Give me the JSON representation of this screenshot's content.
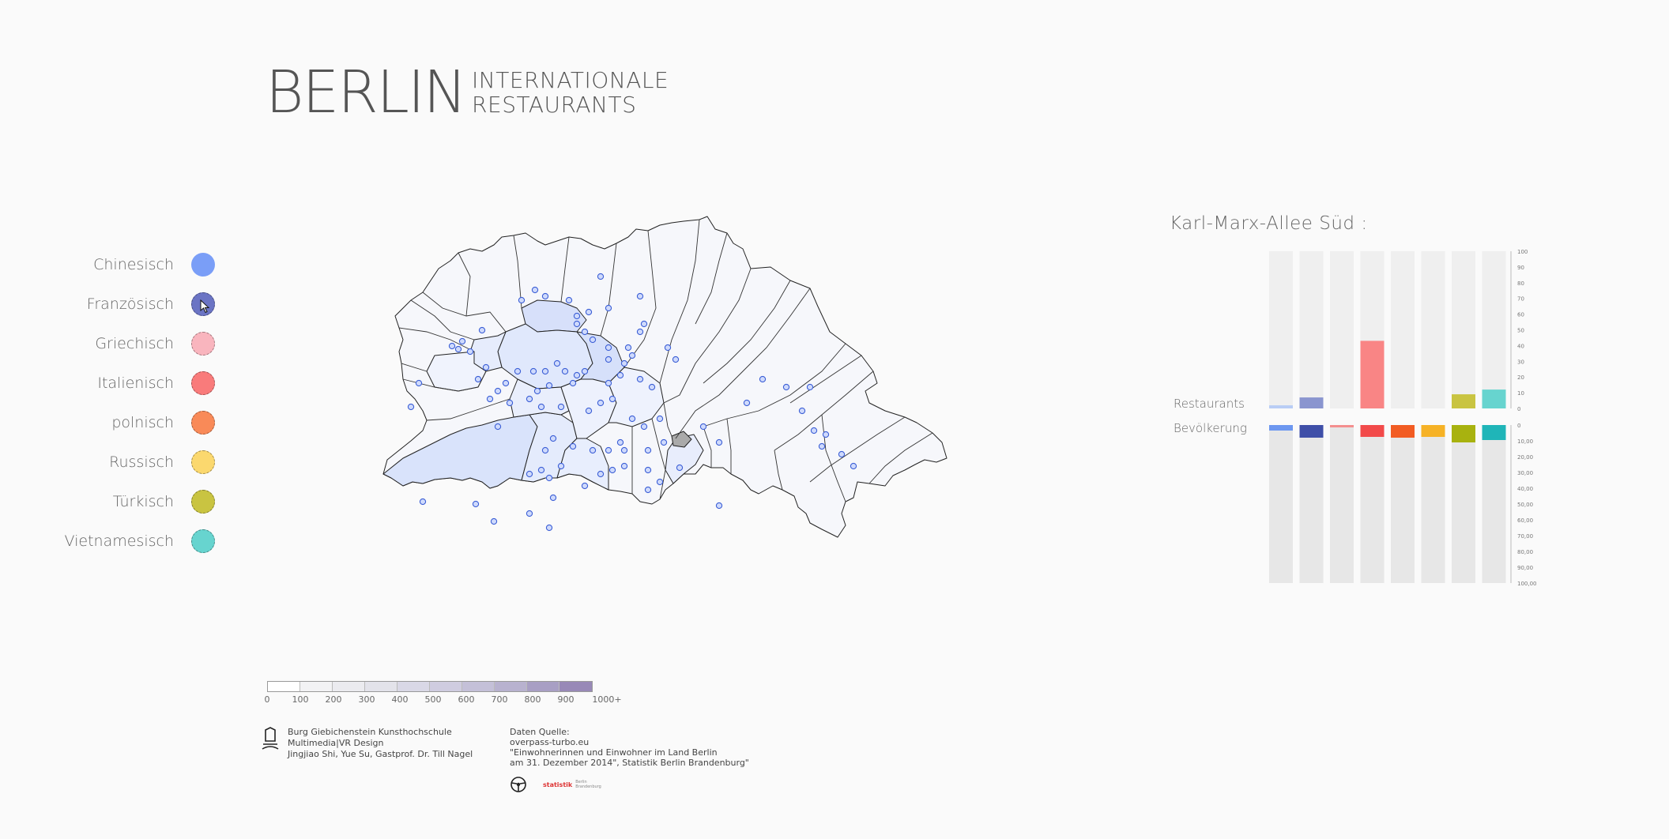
{
  "header": {
    "title": "BERLIN",
    "subtitle_line1": "INTERNATIONALE",
    "subtitle_line2": "RESTAURANTS"
  },
  "legend": {
    "items": [
      {
        "label": "Chinesisch",
        "color": "#7a9ef7",
        "selected": true
      },
      {
        "label": "Französisch",
        "color": "#6b74c4",
        "selected": true
      },
      {
        "label": "Griechisch",
        "color": "#f9b5be",
        "selected": false
      },
      {
        "label": "Italienisch",
        "color": "#f97b7b",
        "selected": false
      },
      {
        "label": "polnisch",
        "color": "#f98a58",
        "selected": false
      },
      {
        "label": "Russisch",
        "color": "#fbd86e",
        "selected": false
      },
      {
        "label": "Türkisch",
        "color": "#c9c441",
        "selected": false
      },
      {
        "label": "Vietnamesisch",
        "color": "#67d4cf",
        "selected": false
      }
    ]
  },
  "scale": {
    "labels": [
      "0",
      "100",
      "200",
      "300",
      "400",
      "500",
      "600",
      "700",
      "800",
      "900",
      "1000+"
    ],
    "colors": [
      "#ffffff",
      "#f2f2f4",
      "#ebebef",
      "#e3e3ea",
      "#d9d8e6",
      "#cfcce0",
      "#c4c0d8",
      "#b8b2cf",
      "#a89fc4",
      "#9889b7"
    ]
  },
  "footer": {
    "left_lines": [
      "Burg Giebichenstein Kunsthochschule",
      "Multimedia|VR Design",
      "Jingjiao Shi, Yue Su, Gastprof. Dr. Till Nagel"
    ],
    "source_lines": [
      "Daten Quelle:",
      "overpass-turbo.eu",
      "\"Einwohnerinnen und Einwohner im Land Berlin",
      "am 31. Dezember 2014\", Statistik Berlin Brandenburg\""
    ],
    "statistik_logo": "statistik",
    "statistik_sub1": "Berlin",
    "statistik_sub2": "Brandenburg"
  },
  "panel": {
    "title": "Karl-Marx-Allee Süd :",
    "row_labels": {
      "restaurants": "Restaurants",
      "population": "Bevölkerung"
    },
    "restaurant_ticks": [
      "100",
      "90",
      "80",
      "70",
      "60",
      "50",
      "40",
      "30",
      "20",
      "10",
      "0"
    ],
    "population_ticks": [
      "0",
      "10,00",
      "20,00",
      "30,00",
      "40,00",
      "50,00",
      "60,00",
      "70,00",
      "80,00",
      "90,00",
      "100,00"
    ]
  },
  "chart_data": {
    "type": "bar",
    "categories": [
      "Chinesisch",
      "Französisch",
      "Griechisch",
      "Italienisch",
      "polnisch",
      "Russisch",
      "Türkisch",
      "Vietnamesisch"
    ],
    "series": [
      {
        "name": "Restaurants",
        "values": [
          2,
          7,
          0,
          43,
          0,
          0,
          9,
          12
        ],
        "colors": [
          "#b9cdf5",
          "#8a95cf",
          "#f9b5be",
          "#f98585",
          "#f98a58",
          "#fbd86e",
          "#c9c441",
          "#67d4cf"
        ]
      },
      {
        "name": "Bevölkerung",
        "values": [
          3.5,
          8,
          1.5,
          7.5,
          8,
          7.5,
          11,
          9.5
        ],
        "colors": [
          "#6d97f0",
          "#3f4fa8",
          "#f48f8f",
          "#f24a4a",
          "#f25c23",
          "#f6b226",
          "#a8b20f",
          "#1fb5b8"
        ]
      }
    ],
    "ylim_restaurants": [
      0,
      100
    ],
    "ylim_population": [
      0,
      100
    ]
  },
  "map": {
    "highlighted_district_color": "#aaaaaa"
  }
}
